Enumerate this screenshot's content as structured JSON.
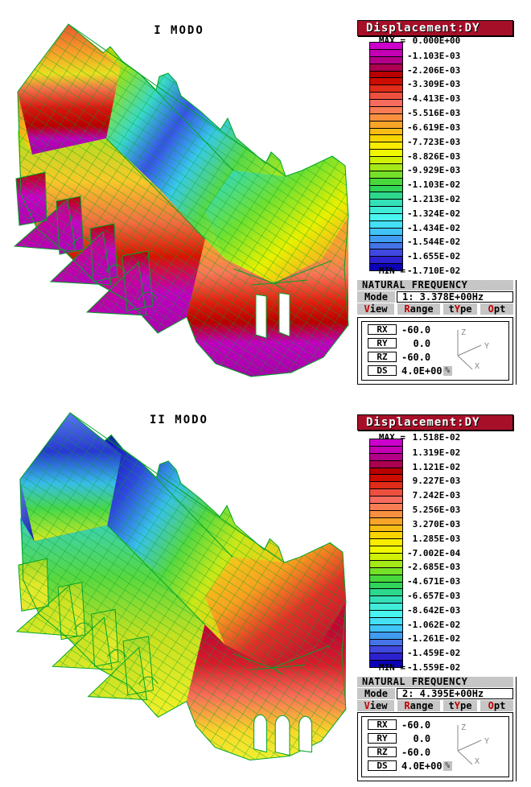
{
  "colors": {
    "header_bg": "#B01028",
    "panel_gray": "#C4C4C4",
    "hot_letter": "#C00000",
    "mesh_line": "#00A428",
    "band_colors": [
      "#CC00CC",
      "#C400B4",
      "#B40088",
      "#AC0050",
      "#B80000",
      "#CC0C00",
      "#E02C18",
      "#EE5040",
      "#F86C60",
      "#F87C54",
      "#F89040",
      "#F8A428",
      "#F8BC14",
      "#F8D400",
      "#F8EC00",
      "#F0F800",
      "#D0F008",
      "#A4E818",
      "#74E028",
      "#48D83C",
      "#30D458",
      "#2CD88C",
      "#34E0B8",
      "#40ECD8",
      "#48F4F0",
      "#44E0F8",
      "#40C4F8",
      "#409CF0",
      "#4474E8",
      "#4048E0",
      "#2C20D0",
      "#0C00B8"
    ]
  },
  "panels": [
    {
      "title": "I MODO",
      "header": "Displacement:DY",
      "legend": {
        "max_label": "MAX =",
        "min_label": "MIN =",
        "values": [
          " 0.000E+00",
          "-1.103E-03",
          "-2.206E-03",
          "-3.309E-03",
          "-4.413E-03",
          "-5.516E-03",
          "-6.619E-03",
          "-7.723E-03",
          "-8.826E-03",
          "-9.929E-03",
          "-1.103E-02",
          "-1.213E-02",
          "-1.324E-02",
          "-1.434E-02",
          "-1.544E-02",
          "-1.655E-02",
          "-1.710E-02"
        ]
      },
      "frequency": {
        "header": "NATURAL FREQUENCY",
        "mode_label": "Mode",
        "mode_value": "1: 3.378E+00Hz",
        "menu": [
          {
            "name": "view",
            "pre": "",
            "hot": "V",
            "post": "iew"
          },
          {
            "name": "range",
            "pre": "",
            "hot": "R",
            "post": "ange"
          },
          {
            "name": "type",
            "pre": "t",
            "hot": "Y",
            "post": "pe"
          },
          {
            "name": "options",
            "pre": "",
            "hot": "O",
            "post": "pt"
          }
        ]
      },
      "view": {
        "rows": [
          {
            "label": "RX",
            "value": "-60.0"
          },
          {
            "label": "RY",
            "value": "  0.0"
          },
          {
            "label": "RZ",
            "value": "-60.0"
          },
          {
            "label": "DS",
            "value": "4.0E+00",
            "suffix": "%"
          }
        ],
        "axes": [
          "Z",
          "Y",
          "X"
        ]
      }
    },
    {
      "title": "II MODO",
      "header": "Displacement:DY",
      "legend": {
        "max_label": "MAX =",
        "min_label": "MIN =",
        "values": [
          " 1.518E-02",
          " 1.319E-02",
          " 1.121E-02",
          " 9.227E-03",
          " 7.242E-03",
          " 5.256E-03",
          " 3.270E-03",
          " 1.285E-03",
          "-7.002E-04",
          "-2.685E-03",
          "-4.671E-03",
          "-6.657E-03",
          "-8.642E-03",
          "-1.062E-02",
          "-1.261E-02",
          "-1.459E-02",
          "-1.559E-02"
        ]
      },
      "frequency": {
        "header": "NATURAL FREQUENCY",
        "mode_label": "Mode",
        "mode_value": "2: 4.395E+00Hz",
        "menu": [
          {
            "name": "view",
            "pre": "",
            "hot": "V",
            "post": "iew"
          },
          {
            "name": "range",
            "pre": "",
            "hot": "R",
            "post": "ange"
          },
          {
            "name": "type",
            "pre": "t",
            "hot": "Y",
            "post": "pe"
          },
          {
            "name": "options",
            "pre": "",
            "hot": "O",
            "post": "pt"
          }
        ]
      },
      "view": {
        "rows": [
          {
            "label": "RX",
            "value": "-60.0"
          },
          {
            "label": "RY",
            "value": "  0.0"
          },
          {
            "label": "RZ",
            "value": "-60.0"
          },
          {
            "label": "DS",
            "value": "4.0E+00",
            "suffix": "%"
          }
        ],
        "axes": [
          "Z",
          "Y",
          "X"
        ]
      }
    }
  ]
}
